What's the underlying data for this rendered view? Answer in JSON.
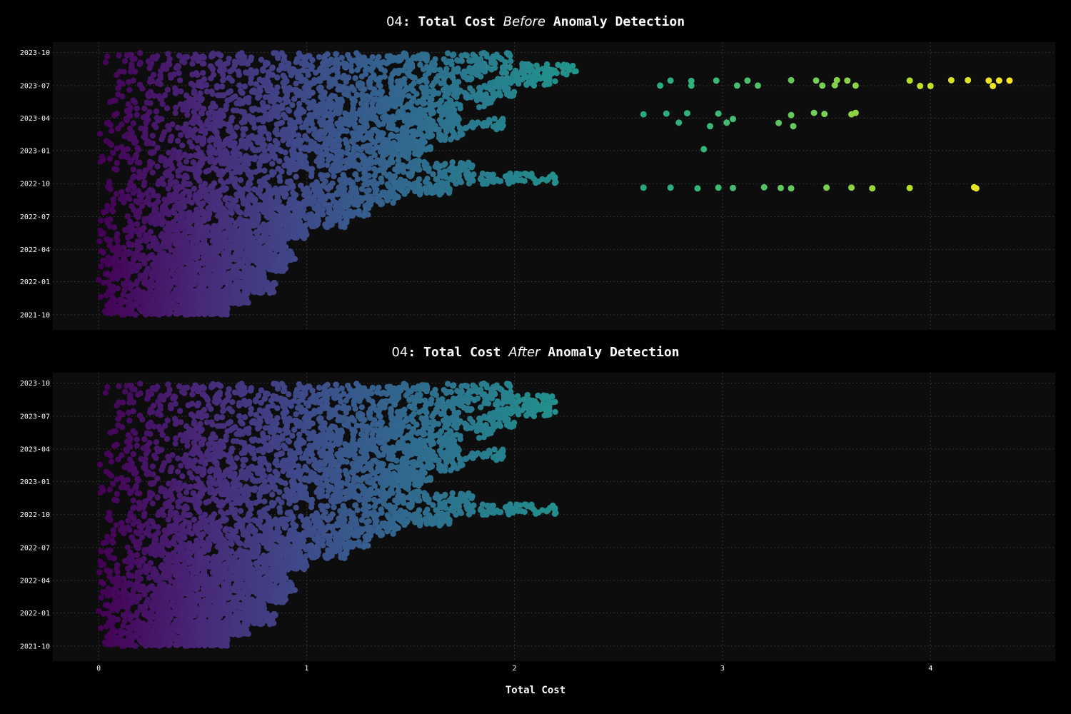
{
  "chart_data": [
    {
      "type": "scatter",
      "title_parts": [
        {
          "text": "04",
          "style": "pre"
        },
        {
          "text": ": Total Cost ",
          "style": "b"
        },
        {
          "text": "Before",
          "style": "i"
        },
        {
          "text": " Anomaly Detection",
          "style": "b"
        }
      ],
      "xlabel": "",
      "ylabel": "",
      "x_ticks": [
        "0",
        "1",
        "2",
        "3",
        "4"
      ],
      "y_ticks": [
        "2021-10",
        "2022-01",
        "2022-04",
        "2022-07",
        "2022-10",
        "2023-01",
        "2023-04",
        "2023-07",
        "2023-10"
      ],
      "xlim": [
        -0.22,
        4.6
      ],
      "ylim": [
        "2021-08-20",
        "2023-10-30"
      ],
      "date_range": [
        "2021-10-01",
        "2023-09-30"
      ],
      "grid": true,
      "colormap": "viridis",
      "color_by": "x",
      "dense_region": {
        "x_max_by_month": [
          0.62,
          0.72,
          0.85,
          0.8,
          0.9,
          0.95,
          0.9,
          1.0,
          1.2,
          1.3,
          1.45,
          1.7,
          2.2,
          1.8,
          1.55,
          1.6,
          1.75,
          1.95,
          1.75,
          1.9,
          2.0,
          2.2,
          2.3,
          2.0
        ]
      },
      "outliers": [
        {
          "date": "2022-09-20",
          "cost": 2.62
        },
        {
          "date": "2022-09-20",
          "cost": 2.75
        },
        {
          "date": "2022-09-18",
          "cost": 2.88
        },
        {
          "date": "2022-09-19",
          "cost": 3.05
        },
        {
          "date": "2022-09-21",
          "cost": 3.2
        },
        {
          "date": "2022-09-18",
          "cost": 3.33
        },
        {
          "date": "2022-09-20",
          "cost": 3.5
        },
        {
          "date": "2022-09-20",
          "cost": 3.62
        },
        {
          "date": "2022-09-18",
          "cost": 3.72
        },
        {
          "date": "2022-09-19",
          "cost": 3.9
        },
        {
          "date": "2022-09-21",
          "cost": 4.21
        },
        {
          "date": "2022-09-18",
          "cost": 4.22
        },
        {
          "date": "2022-09-20",
          "cost": 2.98
        },
        {
          "date": "2022-09-19",
          "cost": 3.28
        },
        {
          "date": "2023-04-12",
          "cost": 2.62
        },
        {
          "date": "2023-04-14",
          "cost": 2.73
        },
        {
          "date": "2023-04-15",
          "cost": 2.83
        },
        {
          "date": "2023-04-14",
          "cost": 2.98
        },
        {
          "date": "2023-04-10",
          "cost": 3.33
        },
        {
          "date": "2023-04-16",
          "cost": 3.44
        },
        {
          "date": "2023-04-13",
          "cost": 3.49
        },
        {
          "date": "2023-04-12",
          "cost": 3.62
        },
        {
          "date": "2023-04-16",
          "cost": 3.64
        },
        {
          "date": "2023-03-20",
          "cost": 2.79
        },
        {
          "date": "2023-03-20",
          "cost": 3.02
        },
        {
          "date": "2023-03-19",
          "cost": 3.27
        },
        {
          "date": "2023-03-10",
          "cost": 2.94
        },
        {
          "date": "2023-03-10",
          "cost": 3.34
        },
        {
          "date": "2023-03-30",
          "cost": 3.05
        },
        {
          "date": "2023-01-05",
          "cost": 2.91
        },
        {
          "date": "2023-07-15",
          "cost": 2.97
        },
        {
          "date": "2023-07-15",
          "cost": 3.12
        },
        {
          "date": "2023-07-16",
          "cost": 3.33
        },
        {
          "date": "2023-07-15",
          "cost": 3.45
        },
        {
          "date": "2023-07-16",
          "cost": 3.55
        },
        {
          "date": "2023-07-15",
          "cost": 3.6
        },
        {
          "date": "2023-07-15",
          "cost": 3.9
        },
        {
          "date": "2023-07-16",
          "cost": 4.1
        },
        {
          "date": "2023-07-16",
          "cost": 4.18
        },
        {
          "date": "2023-07-15",
          "cost": 4.28
        },
        {
          "date": "2023-07-15",
          "cost": 4.33
        },
        {
          "date": "2023-07-15",
          "cost": 4.38
        },
        {
          "date": "2023-07-01",
          "cost": 3.07
        },
        {
          "date": "2023-07-01",
          "cost": 3.17
        },
        {
          "date": "2023-07-01",
          "cost": 3.48
        },
        {
          "date": "2023-07-02",
          "cost": 3.54
        },
        {
          "date": "2023-07-01",
          "cost": 3.64
        },
        {
          "date": "2023-06-30",
          "cost": 3.95
        },
        {
          "date": "2023-06-30",
          "cost": 4.0
        },
        {
          "date": "2023-06-30",
          "cost": 4.3
        },
        {
          "date": "2023-07-15",
          "cost": 2.75
        },
        {
          "date": "2023-07-14",
          "cost": 2.85
        },
        {
          "date": "2023-07-01",
          "cost": 2.7
        },
        {
          "date": "2023-07-01",
          "cost": 2.85
        }
      ]
    },
    {
      "type": "scatter",
      "title_parts": [
        {
          "text": "04",
          "style": "pre"
        },
        {
          "text": ": Total Cost ",
          "style": "b"
        },
        {
          "text": "After",
          "style": "i"
        },
        {
          "text": " Anomaly Detection",
          "style": "b"
        }
      ],
      "xlabel": "Total Cost",
      "ylabel": "",
      "x_ticks": [
        "0",
        "1",
        "2",
        "3",
        "4"
      ],
      "y_ticks": [
        "2021-10",
        "2022-01",
        "2022-04",
        "2022-07",
        "2022-10",
        "2023-01",
        "2023-04",
        "2023-07",
        "2023-10"
      ],
      "xlim": [
        -0.22,
        4.6
      ],
      "ylim": [
        "2021-08-20",
        "2023-10-30"
      ],
      "date_range": [
        "2021-10-01",
        "2023-09-30"
      ],
      "grid": true,
      "colormap": "viridis",
      "color_by": "x",
      "dense_region": {
        "x_max_by_month": [
          0.62,
          0.72,
          0.85,
          0.8,
          0.9,
          0.95,
          0.9,
          1.0,
          1.2,
          1.3,
          1.45,
          1.7,
          2.2,
          1.8,
          1.55,
          1.6,
          1.75,
          1.95,
          1.75,
          1.9,
          2.0,
          2.2,
          2.2,
          2.0
        ]
      },
      "outliers": []
    }
  ],
  "colors": {
    "background": "#000000",
    "plot_background": "#0d0d0d",
    "grid": "#3a3a3a",
    "text": "#ffffff"
  }
}
